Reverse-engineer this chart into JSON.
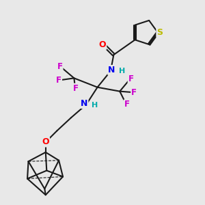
{
  "bg_color": "#e8e8e8",
  "bond_color": "#1a1a1a",
  "bond_width": 1.5,
  "atom_colors": {
    "O": "#ff0000",
    "N": "#0000ee",
    "F": "#cc00cc",
    "S": "#bbbb00",
    "H": "#00aaaa",
    "C": "#1a1a1a"
  },
  "font_size": 8.5
}
